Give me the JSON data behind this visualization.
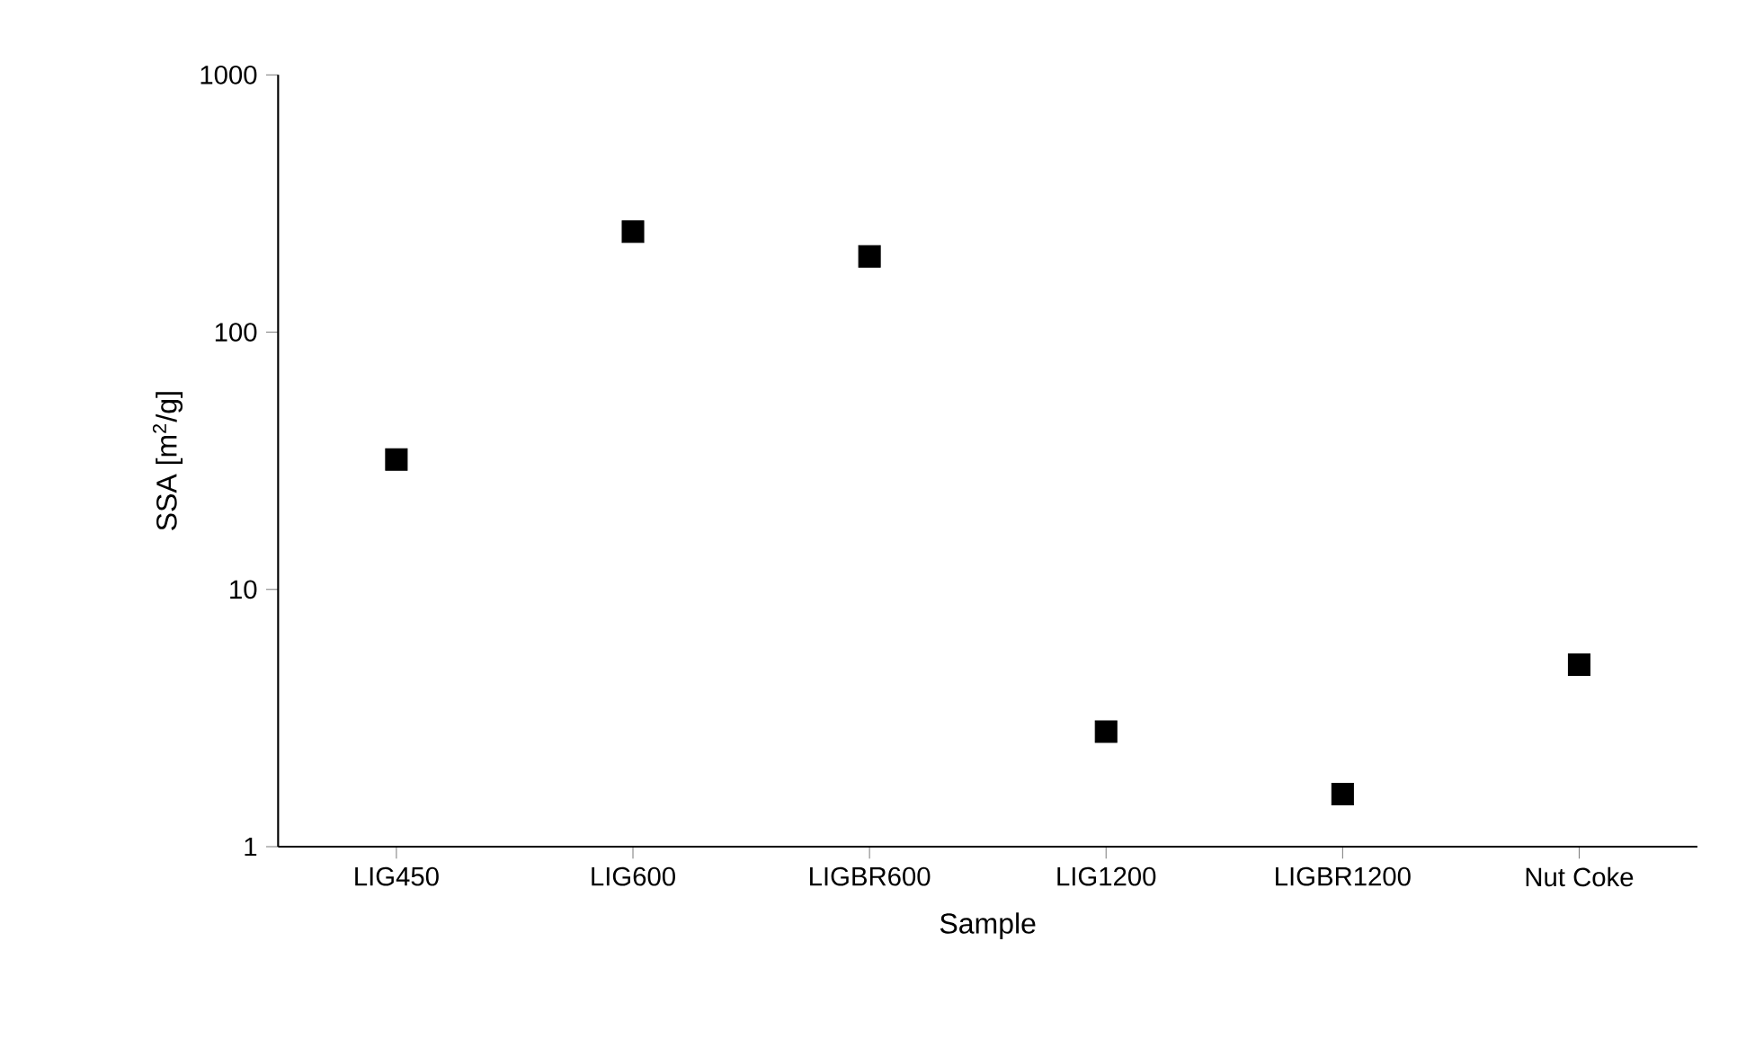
{
  "chart_data": {
    "type": "scatter",
    "xlabel": "Sample",
    "ylabel": "SSA [m$^{2}$/g]",
    "categories": [
      "LIG450",
      "LIG600",
      "LIGBR600",
      "LIG1200",
      "LIGBR1200",
      "Nut Coke"
    ],
    "values": [
      32,
      246,
      197,
      2.8,
      1.6,
      5.1
    ],
    "color": "#000000",
    "marker": "square",
    "log": "y",
    "ylim": [
      1,
      1000
    ],
    "yticks": [
      1,
      10,
      100,
      1000
    ]
  }
}
